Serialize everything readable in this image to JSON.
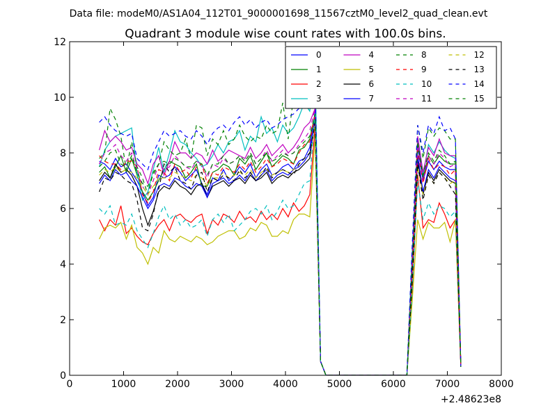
{
  "suptitle": "Data file: modeM0/AS1A04_112T01_9000001698_11567cztM0_level2_quad_clean.evt",
  "chart_data": {
    "type": "line",
    "title": "Quadrant 3 module wise count rates with 100.0s bins.",
    "xlabel": "",
    "ylabel": "",
    "x_offset_label": "+2.48623e8",
    "xlim": [
      0,
      8000
    ],
    "ylim": [
      0,
      12
    ],
    "x_ticks": [
      "0",
      "1000",
      "2000",
      "3000",
      "4000",
      "5000",
      "6000",
      "7000",
      "8000"
    ],
    "y_ticks": [
      "0",
      "2",
      "4",
      "6",
      "8",
      "10",
      "12"
    ],
    "grid": false,
    "legend_position": "top-right",
    "legend_columns": 4,
    "x": [
      550,
      650,
      750,
      850,
      950,
      1050,
      1150,
      1250,
      1350,
      1450,
      1550,
      1650,
      1750,
      1850,
      1950,
      2050,
      2150,
      2250,
      2350,
      2450,
      2550,
      2650,
      2750,
      2850,
      2950,
      3050,
      3150,
      3250,
      3350,
      3450,
      3550,
      3650,
      3750,
      3850,
      3950,
      4050,
      4150,
      4250,
      4350,
      4450,
      4550,
      4650,
      4750,
      6250,
      6350,
      6450,
      6550,
      6650,
      6750,
      6850,
      6950,
      7050,
      7150,
      7250
    ],
    "series": [
      {
        "name": "0",
        "color": "#0000ff",
        "dash": "solid",
        "values": [
          7.7,
          7.6,
          7.4,
          7.8,
          7.5,
          7.6,
          7.3,
          7.0,
          6.6,
          6.1,
          6.4,
          7.2,
          7.1,
          7.2,
          7.5,
          7.3,
          7.0,
          7.2,
          7.4,
          6.9,
          6.5,
          7.1,
          7.0,
          7.4,
          7.0,
          7.2,
          7.5,
          7.3,
          7.6,
          7.1,
          7.4,
          7.6,
          7.2,
          7.3,
          7.5,
          7.6,
          7.4,
          7.7,
          7.8,
          8.2,
          9.5,
          0.5,
          0.0,
          0.0,
          4.0,
          8.2,
          7.0,
          7.7,
          7.4,
          7.7,
          7.5,
          7.4,
          7.4,
          0.3
        ]
      },
      {
        "name": "1",
        "color": "#008000",
        "dash": "solid",
        "values": [
          7.3,
          7.5,
          7.1,
          7.5,
          7.9,
          7.3,
          7.8,
          7.2,
          6.6,
          6.3,
          6.6,
          7.0,
          7.4,
          7.7,
          7.6,
          7.5,
          7.1,
          7.3,
          7.6,
          6.8,
          6.8,
          7.3,
          7.4,
          7.6,
          7.5,
          7.2,
          7.8,
          7.6,
          7.9,
          7.4,
          7.7,
          8.0,
          7.5,
          7.7,
          7.9,
          7.8,
          7.6,
          8.1,
          8.2,
          8.5,
          9.4,
          0.5,
          0.0,
          0.0,
          4.1,
          8.4,
          7.1,
          7.9,
          7.6,
          7.9,
          7.7,
          7.6,
          7.6,
          0.3
        ]
      },
      {
        "name": "2",
        "color": "#ff0000",
        "dash": "solid",
        "values": [
          5.6,
          5.2,
          5.6,
          5.4,
          6.1,
          5.1,
          5.3,
          5.0,
          4.8,
          4.7,
          5.1,
          5.4,
          5.6,
          5.2,
          5.7,
          5.8,
          5.6,
          5.5,
          5.7,
          5.8,
          5.1,
          5.6,
          5.4,
          5.8,
          5.7,
          5.5,
          5.9,
          5.6,
          5.7,
          5.5,
          5.9,
          5.6,
          5.8,
          5.6,
          6.0,
          5.7,
          6.2,
          5.9,
          6.1,
          6.5,
          9.0,
          0.5,
          0.0,
          0.0,
          3.0,
          7.2,
          5.3,
          5.6,
          5.5,
          6.2,
          5.8,
          5.3,
          5.6,
          0.3
        ]
      },
      {
        "name": "3",
        "color": "#00bfbf",
        "dash": "solid",
        "values": [
          7.5,
          8.1,
          8.4,
          8.6,
          8.7,
          8.8,
          8.9,
          7.3,
          6.3,
          6.6,
          7.4,
          8.2,
          7.3,
          8.0,
          8.8,
          8.4,
          8.3,
          8.0,
          7.8,
          7.5,
          7.6,
          7.9,
          8.3,
          8.0,
          8.4,
          8.5,
          8.8,
          8.1,
          8.6,
          8.4,
          9.3,
          8.7,
          8.9,
          8.4,
          9.0,
          8.7,
          8.9,
          9.3,
          9.8,
          9.5,
          11.1,
          0.5,
          0.0,
          0.0,
          4.5,
          8.5,
          7.2,
          8.3,
          8.0,
          8.4,
          8.1,
          7.9,
          7.8,
          0.3
        ]
      },
      {
        "name": "4",
        "color": "#bf00bf",
        "dash": "solid",
        "values": [
          8.1,
          8.8,
          8.4,
          8.6,
          8.4,
          8.1,
          8.2,
          7.6,
          7.4,
          6.9,
          7.6,
          7.9,
          7.2,
          7.7,
          8.4,
          8.0,
          8.0,
          7.8,
          8.0,
          7.9,
          7.6,
          8.1,
          7.7,
          7.9,
          8.1,
          8.0,
          7.9,
          7.8,
          8.2,
          7.8,
          8.0,
          8.3,
          7.9,
          8.1,
          8.3,
          8.0,
          8.2,
          8.5,
          8.9,
          9.1,
          9.6,
          0.5,
          0.0,
          0.0,
          4.2,
          8.6,
          7.3,
          8.2,
          7.9,
          8.5,
          8.0,
          7.9,
          7.9,
          0.3
        ]
      },
      {
        "name": "5",
        "color": "#bfbf00",
        "dash": "solid",
        "values": [
          4.9,
          5.3,
          5.4,
          5.3,
          5.5,
          4.9,
          5.4,
          4.6,
          4.4,
          4.0,
          4.6,
          4.4,
          5.2,
          4.9,
          4.8,
          5.0,
          4.9,
          4.8,
          5.0,
          4.9,
          4.7,
          4.8,
          5.0,
          5.1,
          5.2,
          5.2,
          4.9,
          5.0,
          5.3,
          5.2,
          5.5,
          5.4,
          5.0,
          5.0,
          5.2,
          5.1,
          5.6,
          5.8,
          5.8,
          5.7,
          8.6,
          0.5,
          0.0,
          0.0,
          2.7,
          5.6,
          4.9,
          5.5,
          5.3,
          5.3,
          5.5,
          4.8,
          5.6,
          0.3
        ]
      },
      {
        "name": "6",
        "color": "#000000",
        "dash": "solid",
        "values": [
          7.0,
          7.3,
          7.1,
          7.6,
          7.3,
          7.4,
          7.2,
          6.8,
          6.0,
          5.4,
          5.9,
          6.6,
          6.8,
          6.7,
          7.0,
          6.8,
          6.7,
          6.5,
          6.8,
          6.9,
          6.4,
          6.8,
          6.9,
          7.0,
          6.8,
          7.0,
          7.1,
          6.9,
          7.2,
          7.0,
          7.1,
          7.3,
          6.9,
          7.1,
          7.2,
          7.1,
          7.3,
          7.4,
          7.6,
          7.8,
          9.3,
          0.5,
          0.0,
          0.0,
          3.5,
          7.8,
          6.5,
          7.3,
          7.0,
          7.4,
          7.2,
          7.0,
          6.9,
          0.3
        ]
      },
      {
        "name": "7",
        "color": "#0000ff",
        "dash": "solid",
        "values": [
          6.9,
          7.2,
          7.0,
          7.4,
          7.2,
          7.3,
          7.0,
          6.8,
          6.4,
          6.0,
          6.3,
          6.8,
          6.9,
          6.8,
          7.1,
          7.0,
          6.8,
          6.7,
          6.9,
          6.8,
          6.4,
          6.9,
          7.0,
          7.1,
          6.9,
          7.0,
          7.2,
          7.0,
          7.3,
          7.0,
          7.2,
          7.4,
          7.0,
          7.2,
          7.3,
          7.2,
          7.4,
          7.5,
          7.7,
          8.0,
          9.2,
          0.5,
          0.0,
          0.0,
          3.6,
          7.9,
          6.6,
          7.4,
          7.1,
          7.5,
          7.3,
          7.1,
          7.0,
          0.3
        ]
      },
      {
        "name": "8",
        "color": "#008000",
        "dash": "dashed",
        "values": [
          7.8,
          8.0,
          9.6,
          9.2,
          8.6,
          7.4,
          8.4,
          7.5,
          7.1,
          6.5,
          7.3,
          7.6,
          8.4,
          8.1,
          7.9,
          8.0,
          8.5,
          7.8,
          9.0,
          8.9,
          7.9,
          8.5,
          8.3,
          8.8,
          8.3,
          8.5,
          9.0,
          8.6,
          8.4,
          8.6,
          8.5,
          9.0,
          8.7,
          8.8,
          9.8,
          8.5,
          10.0,
          9.6,
          10.0,
          9.9,
          10.3,
          0.5,
          0.0,
          0.0,
          4.6,
          9.0,
          7.8,
          8.9,
          8.6,
          8.9,
          8.8,
          8.5,
          8.5,
          0.3
        ]
      },
      {
        "name": "9",
        "color": "#ff0000",
        "dash": "dashed",
        "values": [
          7.9,
          7.7,
          7.6,
          7.6,
          7.4,
          7.7,
          7.7,
          7.5,
          6.5,
          6.2,
          6.6,
          7.4,
          7.3,
          7.0,
          7.6,
          7.3,
          7.4,
          7.1,
          7.5,
          7.6,
          6.9,
          7.3,
          7.2,
          7.5,
          7.4,
          7.3,
          7.6,
          7.4,
          7.7,
          7.3,
          7.5,
          7.8,
          7.5,
          7.6,
          7.8,
          7.7,
          7.6,
          8.0,
          8.3,
          8.4,
          9.4,
          0.5,
          0.0,
          0.0,
          3.8,
          8.1,
          6.9,
          7.8,
          7.4,
          7.6,
          7.5,
          7.2,
          7.4,
          0.3
        ]
      },
      {
        "name": "10",
        "color": "#00bfbf",
        "dash": "dashed",
        "values": [
          6.0,
          5.8,
          6.1,
          5.4,
          5.5,
          5.4,
          5.8,
          5.2,
          4.9,
          4.6,
          5.1,
          5.7,
          6.1,
          5.6,
          5.8,
          5.4,
          5.6,
          5.3,
          5.4,
          5.6,
          5.0,
          5.6,
          5.8,
          5.5,
          5.8,
          5.2,
          5.4,
          5.6,
          5.9,
          6.0,
          5.8,
          6.1,
          5.6,
          5.9,
          6.3,
          6.0,
          6.1,
          6.5,
          6.9,
          7.0,
          9.5,
          0.5,
          0.0,
          0.0,
          3.1,
          7.0,
          5.6,
          6.2,
          5.8,
          6.1,
          6.0,
          5.7,
          5.9,
          0.3
        ]
      },
      {
        "name": "11",
        "color": "#bf00bf",
        "dash": "dashed",
        "values": [
          7.6,
          8.0,
          8.1,
          8.3,
          7.9,
          7.7,
          8.0,
          7.4,
          6.8,
          6.5,
          7.0,
          7.6,
          7.4,
          7.5,
          7.9,
          7.7,
          7.5,
          7.4,
          7.7,
          7.6,
          7.1,
          7.6,
          7.5,
          7.8,
          7.6,
          7.7,
          7.9,
          7.7,
          8.0,
          7.6,
          7.8,
          8.1,
          7.7,
          7.9,
          8.1,
          7.9,
          8.0,
          8.3,
          8.5,
          8.8,
          9.6,
          0.5,
          0.0,
          0.0,
          3.9,
          8.3,
          7.0,
          7.9,
          7.6,
          8.0,
          7.8,
          7.5,
          7.6,
          0.3
        ]
      },
      {
        "name": "12",
        "color": "#bfbf00",
        "dash": "dashed",
        "values": [
          7.2,
          7.4,
          7.3,
          7.5,
          7.3,
          7.4,
          7.3,
          7.1,
          6.8,
          6.5,
          6.8,
          7.1,
          7.1,
          7.1,
          7.3,
          7.2,
          7.1,
          7.0,
          7.2,
          7.1,
          6.8,
          7.1,
          7.1,
          7.3,
          7.1,
          7.2,
          7.3,
          7.2,
          7.4,
          7.1,
          7.3,
          7.4,
          7.2,
          7.3,
          7.4,
          7.3,
          7.4,
          7.6,
          7.8,
          8.0,
          9.0,
          0.5,
          0.0,
          0.0,
          3.3,
          7.5,
          6.5,
          7.2,
          6.9,
          7.3,
          7.1,
          6.9,
          7.0,
          0.3
        ]
      },
      {
        "name": "13",
        "color": "#000000",
        "dash": "dashed",
        "values": [
          6.6,
          7.1,
          7.0,
          7.3,
          7.2,
          7.0,
          6.9,
          6.3,
          5.3,
          5.2,
          5.8,
          6.7,
          7.6,
          7.3,
          7.5,
          7.0,
          6.9,
          6.7,
          7.2,
          7.3,
          6.6,
          7.1,
          7.0,
          7.2,
          7.1,
          7.0,
          7.4,
          7.1,
          7.3,
          7.0,
          7.2,
          7.5,
          7.1,
          7.3,
          7.4,
          7.3,
          7.2,
          7.6,
          7.8,
          8.0,
          9.1,
          0.5,
          0.0,
          0.0,
          3.4,
          7.6,
          6.3,
          7.2,
          6.9,
          7.3,
          7.1,
          6.8,
          6.5,
          0.3
        ]
      },
      {
        "name": "14",
        "color": "#0000ff",
        "dash": "dashed",
        "values": [
          9.1,
          9.3,
          9.0,
          8.8,
          8.7,
          8.6,
          8.7,
          7.8,
          7.6,
          7.4,
          8.0,
          8.4,
          8.8,
          8.6,
          8.7,
          8.8,
          8.6,
          8.5,
          8.8,
          8.6,
          8.3,
          8.7,
          8.9,
          9.0,
          8.8,
          9.1,
          9.3,
          9.0,
          9.2,
          8.9,
          9.1,
          9.2,
          8.9,
          9.0,
          9.2,
          9.3,
          9.4,
          9.6,
          9.7,
          9.9,
          10.5,
          0.5,
          0.0,
          0.0,
          4.7,
          9.0,
          8.0,
          9.0,
          8.7,
          9.3,
          8.8,
          8.9,
          8.5,
          0.3
        ]
      },
      {
        "name": "15",
        "color": "#008000",
        "dash": "dashed",
        "values": [
          7.5,
          7.7,
          8.0,
          8.1,
          7.6,
          7.5,
          7.9,
          7.3,
          6.9,
          6.8,
          7.2,
          7.6,
          7.7,
          7.6,
          7.8,
          7.7,
          7.5,
          7.5,
          7.7,
          7.6,
          7.2,
          7.6,
          7.6,
          7.9,
          7.6,
          7.7,
          7.9,
          7.7,
          8.0,
          7.6,
          7.8,
          8.0,
          7.7,
          7.8,
          8.0,
          7.9,
          8.0,
          8.2,
          8.4,
          8.6,
          9.4,
          0.5,
          0.0,
          0.0,
          4.0,
          8.4,
          7.2,
          8.0,
          7.7,
          8.1,
          7.9,
          7.6,
          7.7,
          0.3
        ]
      }
    ]
  }
}
